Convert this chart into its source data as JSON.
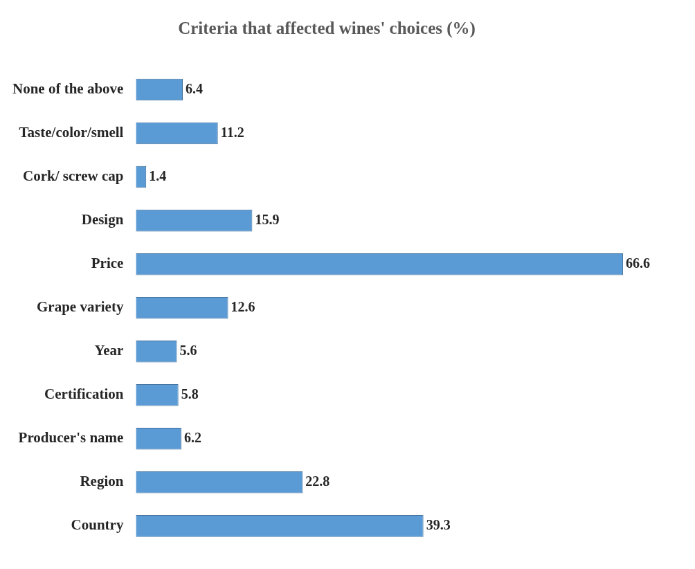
{
  "chart_data": {
    "type": "bar",
    "orientation": "horizontal",
    "title": "Criteria that affected wines' choices (%)",
    "categories": [
      "None of the above",
      "Taste/color/smell",
      "Cork/ screw cap",
      "Design",
      "Price",
      "Grape variety",
      "Year",
      "Certification",
      "Producer's name",
      "Region",
      "Country"
    ],
    "values": [
      6.4,
      11.2,
      1.4,
      15.9,
      66.6,
      12.6,
      5.6,
      5.8,
      6.2,
      22.8,
      39.3
    ],
    "color": "#5b9bd5",
    "data_labels": true
  }
}
